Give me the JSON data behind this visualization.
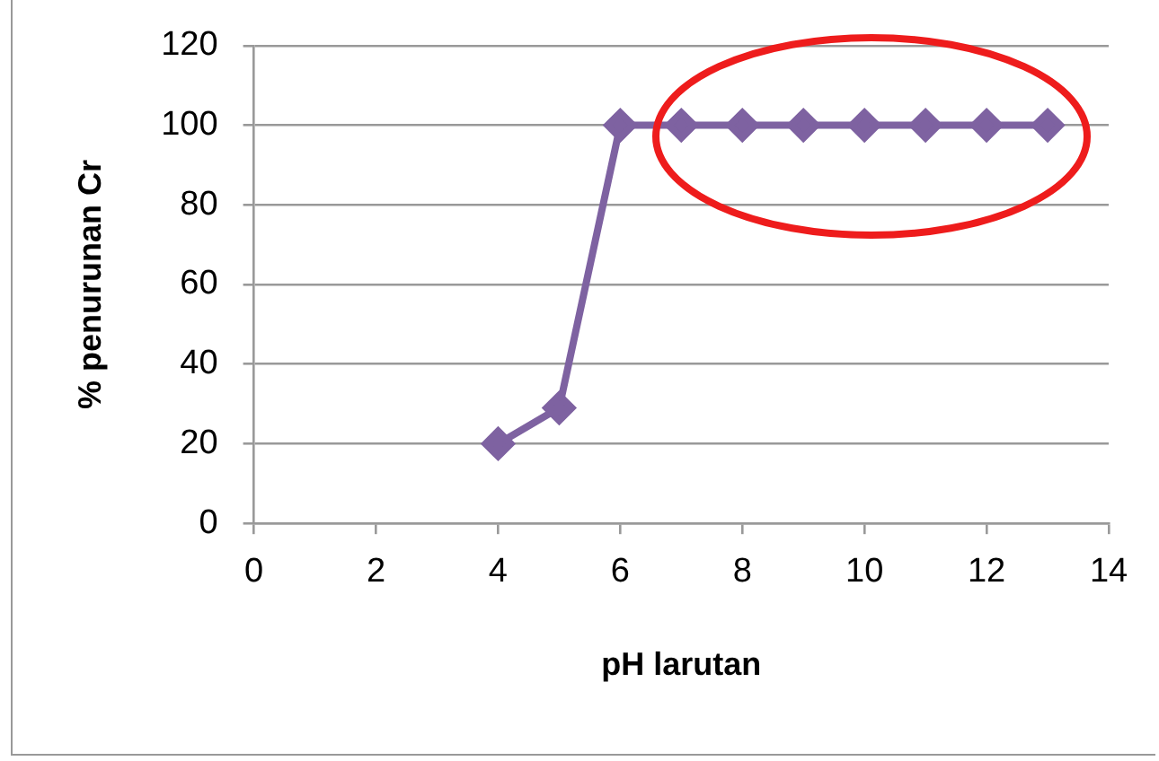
{
  "chart_data": {
    "type": "line",
    "xlabel": "pH larutan",
    "ylabel": "% penurunan Cr",
    "x": [
      4,
      5,
      6,
      7,
      8,
      9,
      10,
      11,
      12,
      13
    ],
    "series": [
      {
        "color": "#7e62a1",
        "values": [
          20,
          29,
          100,
          100,
          100,
          100,
          100,
          100,
          100,
          100
        ]
      }
    ],
    "xlim": [
      0,
      14
    ],
    "xticks": [
      0,
      2,
      4,
      6,
      8,
      10,
      12,
      14
    ],
    "ylim": [
      0,
      120
    ],
    "yticks": [
      0,
      20,
      40,
      60,
      80,
      100,
      120
    ],
    "grid": "y",
    "legend": false,
    "marker": "diamond",
    "line_style": "solid"
  }
}
